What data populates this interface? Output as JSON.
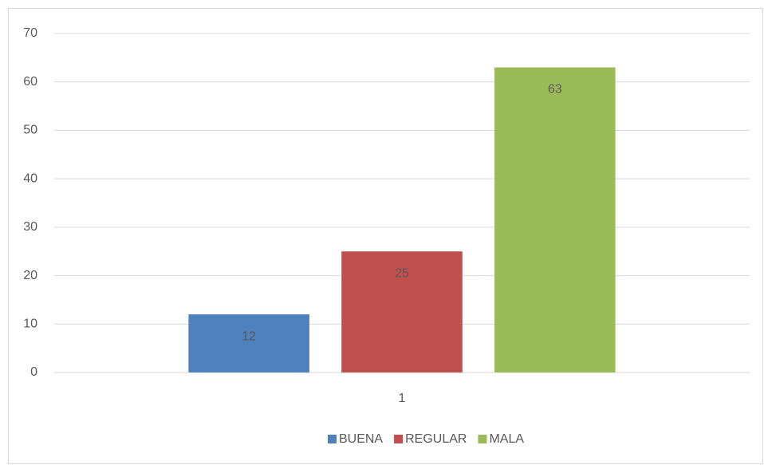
{
  "chart_data": {
    "type": "bar",
    "categories": [
      "1"
    ],
    "series": [
      {
        "name": "BUENA",
        "color": "#4f81bd",
        "values": [
          12
        ]
      },
      {
        "name": "REGULAR",
        "color": "#c0504d",
        "values": [
          25
        ]
      },
      {
        "name": "MALA",
        "color": "#9bbb59",
        "values": [
          63
        ]
      }
    ],
    "ylim": [
      0,
      70
    ],
    "yticks": [
      0,
      10,
      20,
      30,
      40,
      50,
      60,
      70
    ],
    "grid": true,
    "legend": "bottom"
  }
}
